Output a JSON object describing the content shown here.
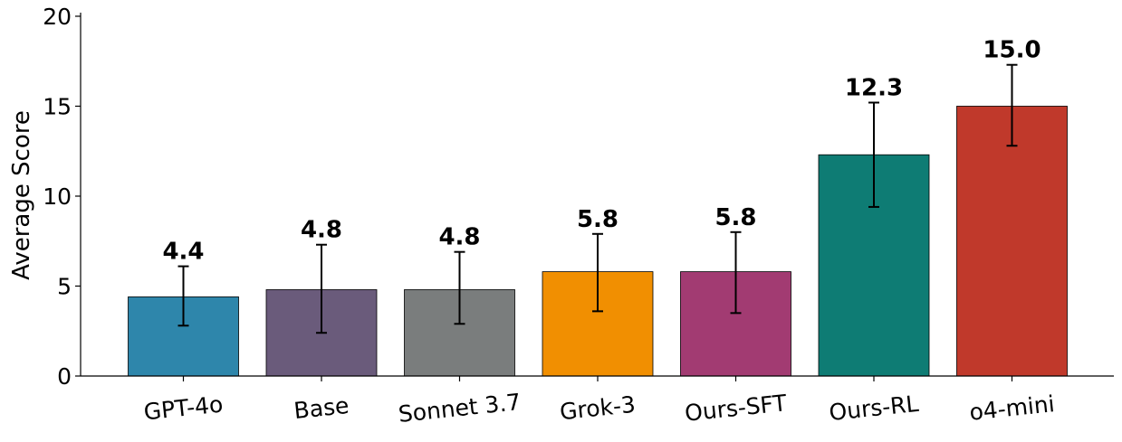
{
  "chart_data": {
    "type": "bar",
    "title": "",
    "xlabel": "",
    "ylabel": "Average Score",
    "ylim": [
      0,
      20.2
    ],
    "yticks": [
      0,
      5,
      10,
      15,
      20
    ],
    "grid": false,
    "legend": "none",
    "categories": [
      "GPT-4o",
      "Base",
      "Sonnet 3.7",
      "Grok-3",
      "Ours-SFT",
      "Ours-RL",
      "o4-mini"
    ],
    "values": [
      4.4,
      4.8,
      4.8,
      5.8,
      5.8,
      12.3,
      15.0
    ],
    "value_labels": [
      "4.4",
      "4.8",
      "4.8",
      "5.8",
      "5.8",
      "12.3",
      "15.0"
    ],
    "error_low": [
      2.8,
      2.4,
      2.9,
      3.6,
      3.5,
      9.4,
      12.8
    ],
    "error_high": [
      6.1,
      7.3,
      6.9,
      7.9,
      8.0,
      15.2,
      17.3
    ],
    "colors": [
      "#2e86ab",
      "#6a5b7b",
      "#7a7d7d",
      "#f18f01",
      "#a23b72",
      "#0e7c74",
      "#c0392b"
    ]
  }
}
